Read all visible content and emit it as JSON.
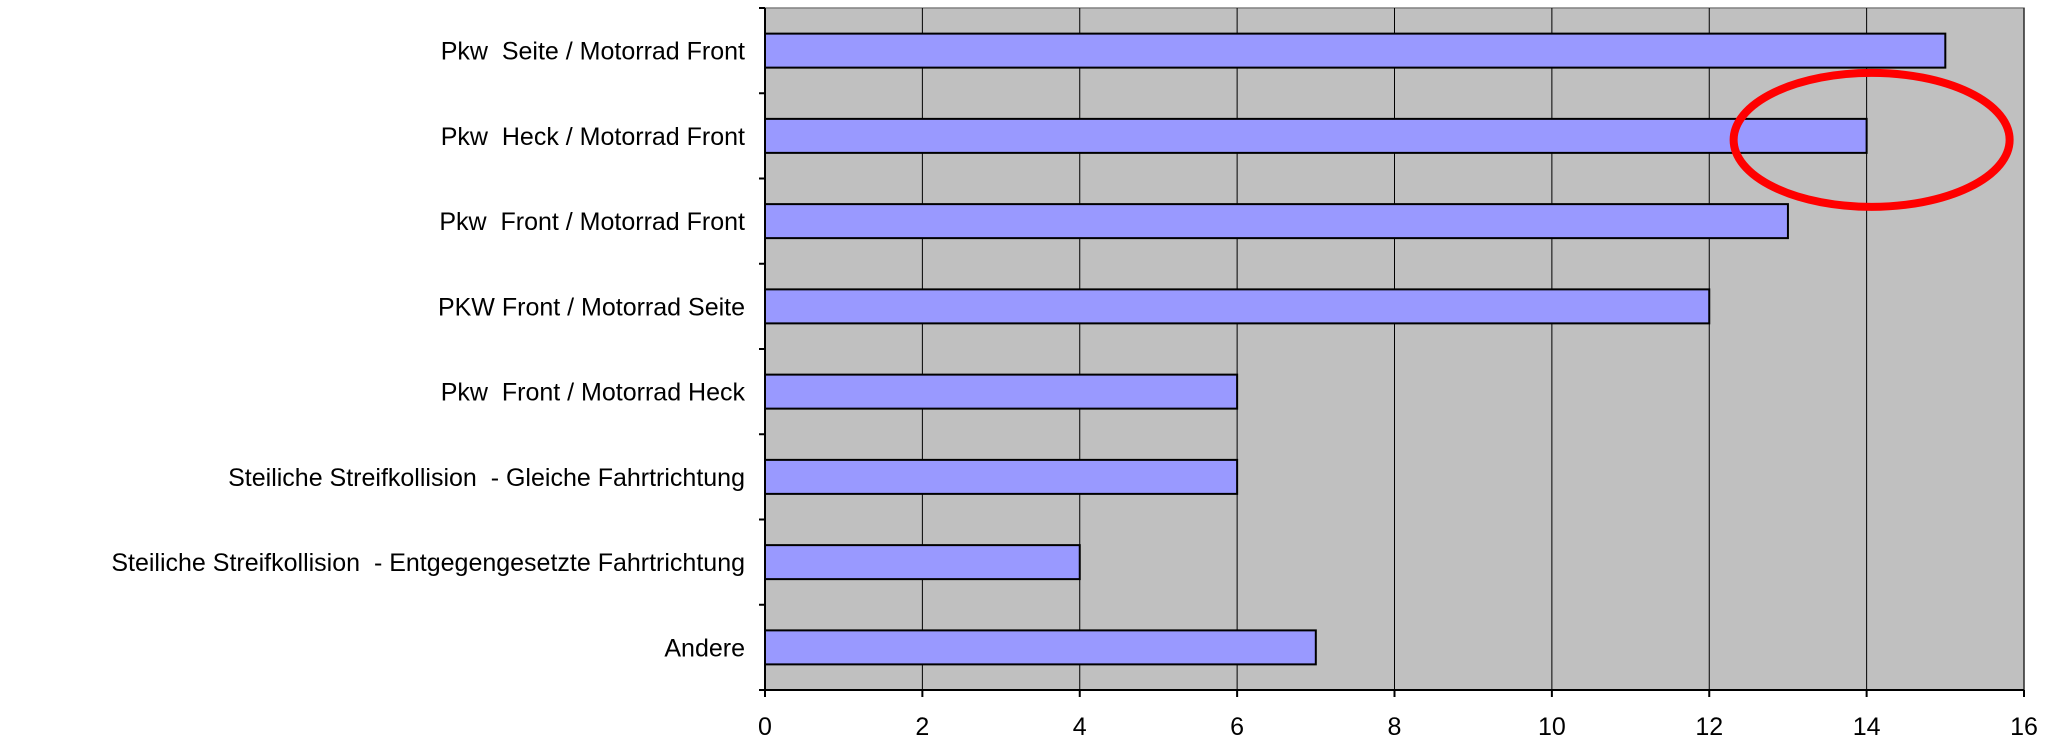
{
  "chart_data": {
    "type": "bar",
    "orientation": "horizontal",
    "categories": [
      "Pkw  Seite / Motorrad Front",
      "Pkw  Heck / Motorrad Front",
      "Pkw  Front / Motorrad Front",
      "PKW Front / Motorrad Seite",
      "Pkw  Front / Motorrad Heck",
      "Steiliche Streifkollision  - Gleiche Fahrtrichtung",
      "Steiliche Streifkollision  - Entgegengesetzte Fahrtrichtung",
      "Andere"
    ],
    "values": [
      15,
      14,
      13,
      12,
      6,
      6,
      4,
      7
    ],
    "xlim": [
      0,
      16
    ],
    "x_ticks": [
      0,
      2,
      4,
      6,
      8,
      10,
      12,
      14,
      16
    ],
    "x_tick_labels": [
      "0",
      "2",
      "4",
      "6",
      "8",
      "10",
      "12",
      "14",
      "16"
    ],
    "grid": "vertical",
    "title": "",
    "xlabel": "",
    "ylabel": "",
    "colors": {
      "bar_fill": "#9999ff",
      "bar_stroke": "#000000",
      "plot_background": "#c0c0c0",
      "grid": "#000000",
      "highlight": "#ff0000"
    },
    "annotation": {
      "shape": "ellipse",
      "highlighted_category": "Pkw  Heck / Motorrad Front",
      "center_value": 14
    }
  }
}
